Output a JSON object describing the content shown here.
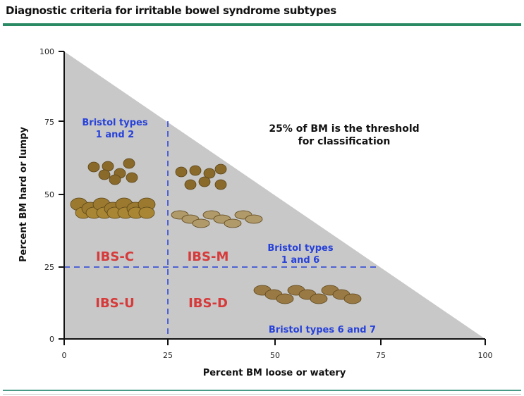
{
  "title": "Diagnostic criteria for irritable bowel syndrome subtypes",
  "x_axis": {
    "label": "Percent BM loose or watery",
    "ticks": [
      "0",
      "25",
      "50",
      "75",
      "100"
    ]
  },
  "y_axis": {
    "label": "Percent BM hard or lumpy",
    "ticks": [
      "0",
      "25",
      "50",
      "75",
      "100"
    ]
  },
  "threshold_note": [
    "25% of BM is the threshold",
    "for classification"
  ],
  "regions": {
    "c": "IBS-C",
    "m": "IBS-M",
    "u": "IBS-U",
    "d": "IBS-D"
  },
  "bristol": {
    "hard": [
      "Bristol types",
      "1 and 2"
    ],
    "mixed": [
      "Bristol types",
      "1 and 6"
    ],
    "loose": "Bristol types 6 and 7"
  },
  "colors": {
    "accent": "#2a8a64",
    "region_label": "#d63a3a",
    "bristol_label": "#2741d9",
    "triangle": "#c8c8c8",
    "stool": "#8a6a2a"
  }
}
